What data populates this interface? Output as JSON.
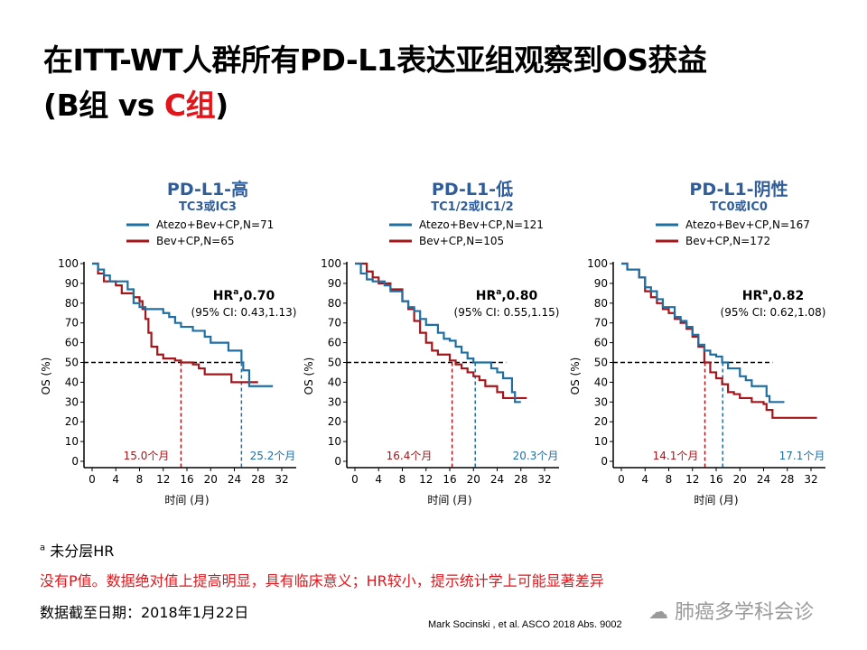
{
  "title": {
    "line1": "在ITT-WT人群所有PD-L1表达亚组观察到OS获益",
    "line2_a": "(B组 vs ",
    "line2_b": "C组",
    "line2_c": ")"
  },
  "colors": {
    "blue": "#1f6fa3",
    "red": "#a4161a",
    "title_blue": "#2e5d9a",
    "accent_red": "#e0161b"
  },
  "chart_data": [
    {
      "type": "line",
      "title": "PD-L1-高",
      "subtitle": "TC3或IC3",
      "xlabel": "时间 (月)",
      "ylabel": "OS (%)",
      "xlim": [
        0,
        32
      ],
      "ylim": [
        0,
        100
      ],
      "xticks": [
        "0",
        "4",
        "8",
        "12",
        "16",
        "20",
        "24",
        "28",
        "32"
      ],
      "yticks": [
        "100",
        "90",
        "80",
        "70",
        "60",
        "50",
        "40",
        "30",
        "20",
        "10",
        "0"
      ],
      "hr_label": "HR",
      "hr_sup": "a",
      "hr_value": ",0.70",
      "ci": "(95% CI: 0.43,1.13)",
      "series": [
        {
          "name": "Atezo+Bev+CP,N=71",
          "color": "#1f6fa3",
          "median": 25.2,
          "median_label": "25.2个月",
          "points": [
            [
              0,
              100
            ],
            [
              1,
              97
            ],
            [
              2,
              94
            ],
            [
              3,
              91
            ],
            [
              5,
              91
            ],
            [
              6,
              87
            ],
            [
              7,
              80
            ],
            [
              8,
              78
            ],
            [
              9,
              77
            ],
            [
              11,
              77
            ],
            [
              12,
              75
            ],
            [
              13,
              73
            ],
            [
              14,
              70
            ],
            [
              15,
              68
            ],
            [
              17,
              66
            ],
            [
              19,
              63
            ],
            [
              20,
              60
            ],
            [
              23,
              56
            ],
            [
              25,
              56
            ],
            [
              25.2,
              50
            ],
            [
              25.5,
              46
            ],
            [
              26.5,
              38
            ],
            [
              30.5,
              38
            ]
          ]
        },
        {
          "name": "Bev+CP,N=65",
          "color": "#a4161a",
          "median": 15.0,
          "median_label": "15.0个月",
          "points": [
            [
              0,
              100
            ],
            [
              1,
              95
            ],
            [
              2,
              91
            ],
            [
              4,
              89
            ],
            [
              5,
              85
            ],
            [
              7,
              83
            ],
            [
              8,
              81
            ],
            [
              8.5,
              77
            ],
            [
              9,
              72
            ],
            [
              9.5,
              65
            ],
            [
              10,
              58
            ],
            [
              11,
              54
            ],
            [
              12,
              52
            ],
            [
              14,
              51
            ],
            [
              15,
              50
            ],
            [
              17,
              49
            ],
            [
              18,
              47
            ],
            [
              19,
              44
            ],
            [
              23,
              44
            ],
            [
              23.5,
              40
            ],
            [
              28,
              40
            ]
          ]
        }
      ]
    },
    {
      "type": "line",
      "title": "PD-L1-低",
      "subtitle": "TC1/2或IC1/2",
      "xlabel": "时间 (月)",
      "ylabel": "OS (%)",
      "xlim": [
        0,
        32
      ],
      "ylim": [
        0,
        100
      ],
      "xticks": [
        "0",
        "4",
        "8",
        "12",
        "16",
        "20",
        "24",
        "28",
        "32"
      ],
      "yticks": [
        "100",
        "90",
        "80",
        "70",
        "60",
        "50",
        "40",
        "30",
        "20",
        "10",
        "0"
      ],
      "hr_label": "HR",
      "hr_sup": "a",
      "hr_value": ",0.80",
      "ci": "(95% CI: 0.55,1.15)",
      "series": [
        {
          "name": "Atezo+Bev+CP,N=121",
          "color": "#1f6fa3",
          "median": 20.3,
          "median_label": "20.3个月",
          "points": [
            [
              0,
              100
            ],
            [
              1,
              95
            ],
            [
              2,
              92
            ],
            [
              3,
              91
            ],
            [
              5,
              89
            ],
            [
              6,
              86
            ],
            [
              8,
              81
            ],
            [
              9,
              78
            ],
            [
              10,
              76
            ],
            [
              11,
              72
            ],
            [
              12,
              69
            ],
            [
              14,
              65
            ],
            [
              15,
              62
            ],
            [
              16,
              61
            ],
            [
              17,
              58
            ],
            [
              18,
              55
            ],
            [
              19,
              52
            ],
            [
              20,
              50
            ],
            [
              22,
              50
            ],
            [
              23,
              47
            ],
            [
              24,
              45
            ],
            [
              25,
              42
            ],
            [
              26,
              42
            ],
            [
              26.5,
              35
            ],
            [
              27,
              30
            ],
            [
              28,
              30
            ]
          ]
        },
        {
          "name": "Bev+CP,N=105",
          "color": "#a4161a",
          "median": 16.4,
          "median_label": "16.4个月",
          "points": [
            [
              0,
              100
            ],
            [
              2,
              96
            ],
            [
              3,
              93
            ],
            [
              4,
              90
            ],
            [
              6,
              87
            ],
            [
              8,
              81
            ],
            [
              9,
              77
            ],
            [
              10,
              71
            ],
            [
              11,
              65
            ],
            [
              12,
              60
            ],
            [
              13,
              56
            ],
            [
              14,
              54
            ],
            [
              16,
              51
            ],
            [
              17,
              49
            ],
            [
              18,
              47
            ],
            [
              19,
              45
            ],
            [
              20,
              43
            ],
            [
              21,
              41
            ],
            [
              22,
              38
            ],
            [
              24,
              35
            ],
            [
              25,
              32
            ],
            [
              29,
              32
            ]
          ]
        }
      ]
    },
    {
      "type": "line",
      "title": "PD-L1-阴性",
      "subtitle": "TC0或IC0",
      "xlabel": "时间 (月)",
      "ylabel": "OS (%)",
      "xlim": [
        0,
        32
      ],
      "ylim": [
        0,
        100
      ],
      "xticks": [
        "0",
        "4",
        "8",
        "12",
        "16",
        "20",
        "24",
        "28",
        "32"
      ],
      "yticks": [
        "100",
        "90",
        "80",
        "70",
        "60",
        "50",
        "40",
        "30",
        "20",
        "10",
        "0"
      ],
      "hr_label": "HR",
      "hr_sup": "a",
      "hr_value": ",0.82",
      "ci": "(95% CI: 0.62,1.08)",
      "series": [
        {
          "name": "Atezo+Bev+CP,N=167",
          "color": "#1f6fa3",
          "median": 17.1,
          "median_label": "17.1个月",
          "points": [
            [
              0,
              100
            ],
            [
              1,
              97
            ],
            [
              3,
              93
            ],
            [
              4,
              88
            ],
            [
              5,
              86
            ],
            [
              6,
              82
            ],
            [
              7,
              78
            ],
            [
              9,
              73
            ],
            [
              10,
              71
            ],
            [
              11,
              68
            ],
            [
              12,
              64
            ],
            [
              13,
              59
            ],
            [
              14,
              56
            ],
            [
              15,
              54
            ],
            [
              16,
              53
            ],
            [
              17,
              50
            ],
            [
              18,
              47
            ],
            [
              19,
              47
            ],
            [
              20,
              43
            ],
            [
              21,
              41
            ],
            [
              22,
              38
            ],
            [
              24,
              38
            ],
            [
              24.5,
              33
            ],
            [
              25,
              30
            ],
            [
              27.5,
              30
            ]
          ]
        },
        {
          "name": "Bev+CP,N=172",
          "color": "#a4161a",
          "median": 14.1,
          "median_label": "14.1个月",
          "points": [
            [
              0,
              100
            ],
            [
              1,
              97
            ],
            [
              3,
              93
            ],
            [
              4,
              86
            ],
            [
              5,
              83
            ],
            [
              6,
              80
            ],
            [
              7,
              77
            ],
            [
              8,
              75
            ],
            [
              9,
              72
            ],
            [
              10,
              70
            ],
            [
              11,
              67
            ],
            [
              12,
              63
            ],
            [
              13,
              58
            ],
            [
              14,
              50
            ],
            [
              15,
              45
            ],
            [
              16,
              42
            ],
            [
              17,
              39
            ],
            [
              18,
              35
            ],
            [
              19,
              34
            ],
            [
              20,
              32
            ],
            [
              22,
              30
            ],
            [
              24,
              29
            ],
            [
              24.5,
              26
            ],
            [
              25.5,
              22
            ],
            [
              33,
              22
            ]
          ]
        }
      ]
    }
  ],
  "footnotes": {
    "sup": "a",
    "note": " 未分层HR",
    "remark": "没有P值。数据绝对值上提高明显，具有临床意义；HR较小，提示统计学上可能显著差异",
    "cutoff": "数据截至日期：2018年1月22日"
  },
  "citation": "Mark Socinski , et al.  ASCO 2018 Abs. 9002",
  "watermark": "肺癌多学科会诊"
}
